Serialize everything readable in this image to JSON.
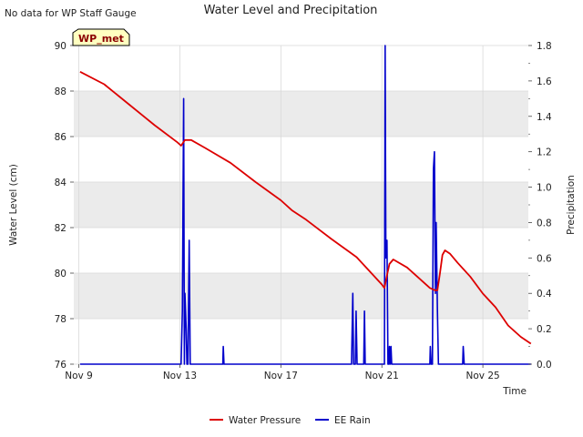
{
  "header": {
    "no_data_note": "No data for WP Staff Gauge"
  },
  "badge": {
    "label": "WP_met",
    "fill_color": "#ffffc0",
    "text_color": "#8b0000"
  },
  "colors": {
    "water_pressure": "#dd0000",
    "ee_rain": "#0000cc",
    "band": "#ebebeb",
    "grid": "#d8d8d8"
  },
  "chart_data": {
    "type": "line",
    "title": "Water Level and Precipitation",
    "xlabel": "Time",
    "ylabel_left": "Water Level (cm)",
    "ylabel_right": "Precipitation",
    "xlim": [
      8.8,
      26.8
    ],
    "ylim_left": [
      76,
      90
    ],
    "ylim_right": [
      0,
      1.8
    ],
    "x_ticks": [
      {
        "value": 9,
        "label": "Nov 9"
      },
      {
        "value": 13,
        "label": "Nov 13"
      },
      {
        "value": 17,
        "label": "Nov 17"
      },
      {
        "value": 21,
        "label": "Nov 21"
      },
      {
        "value": 25,
        "label": "Nov 25"
      }
    ],
    "y_ticks_left": [
      {
        "value": 76,
        "label": "76"
      },
      {
        "value": 78,
        "label": "78"
      },
      {
        "value": 80,
        "label": "80"
      },
      {
        "value": 82,
        "label": "82"
      },
      {
        "value": 84,
        "label": "84"
      },
      {
        "value": 86,
        "label": "86"
      },
      {
        "value": 88,
        "label": "88"
      },
      {
        "value": 90,
        "label": "90"
      }
    ],
    "y_ticks_right": [
      {
        "value": 0.0,
        "label": "0.0"
      },
      {
        "value": 0.2,
        "label": "0.2"
      },
      {
        "value": 0.4,
        "label": "0.4"
      },
      {
        "value": 0.6,
        "label": "0.6"
      },
      {
        "value": 0.8,
        "label": "0.8"
      },
      {
        "value": 1.0,
        "label": "1.0"
      },
      {
        "value": 1.2,
        "label": "1.2"
      },
      {
        "value": 1.4,
        "label": "1.4"
      },
      {
        "value": 1.6,
        "label": "1.6"
      },
      {
        "value": 1.8,
        "label": "1.8"
      }
    ],
    "legend": {
      "placement": "bottom-center",
      "entries": [
        "Water Pressure",
        "EE Rain"
      ]
    },
    "series": [
      {
        "name": "Water Pressure",
        "axis": "left",
        "points": [
          [
            9.05,
            88.85
          ],
          [
            10.0,
            88.3
          ],
          [
            11.0,
            87.4
          ],
          [
            12.0,
            86.5
          ],
          [
            12.9,
            85.75
          ],
          [
            13.05,
            85.6
          ],
          [
            13.2,
            85.85
          ],
          [
            13.45,
            85.85
          ],
          [
            14.0,
            85.5
          ],
          [
            15.0,
            84.85
          ],
          [
            16.0,
            84.0
          ],
          [
            17.0,
            83.2
          ],
          [
            17.45,
            82.75
          ],
          [
            18.0,
            82.35
          ],
          [
            19.0,
            81.5
          ],
          [
            20.0,
            80.7
          ],
          [
            21.0,
            79.5
          ],
          [
            21.1,
            79.35
          ],
          [
            21.2,
            79.9
          ],
          [
            21.3,
            80.4
          ],
          [
            21.45,
            80.6
          ],
          [
            22.0,
            80.25
          ],
          [
            22.5,
            79.75
          ],
          [
            22.9,
            79.35
          ],
          [
            23.1,
            79.25
          ],
          [
            23.2,
            79.25
          ],
          [
            23.3,
            80.0
          ],
          [
            23.4,
            80.8
          ],
          [
            23.5,
            81.0
          ],
          [
            23.7,
            80.85
          ],
          [
            24.0,
            80.45
          ],
          [
            24.5,
            79.85
          ],
          [
            25.0,
            79.1
          ],
          [
            25.5,
            78.5
          ],
          [
            26.0,
            77.7
          ],
          [
            26.5,
            77.2
          ],
          [
            26.9,
            76.9
          ]
        ]
      },
      {
        "name": "EE Rain",
        "axis": "right",
        "points": [
          [
            9.05,
            0
          ],
          [
            13.05,
            0
          ],
          [
            13.1,
            0.3
          ],
          [
            13.15,
            1.5
          ],
          [
            13.18,
            0
          ],
          [
            13.2,
            0.4
          ],
          [
            13.25,
            0.2
          ],
          [
            13.28,
            0
          ],
          [
            13.32,
            0
          ],
          [
            13.37,
            0.7
          ],
          [
            13.41,
            0
          ],
          [
            14.7,
            0
          ],
          [
            14.72,
            0.1
          ],
          [
            14.75,
            0
          ],
          [
            19.8,
            0
          ],
          [
            19.85,
            0.4
          ],
          [
            19.88,
            0
          ],
          [
            19.95,
            0
          ],
          [
            19.98,
            0.3
          ],
          [
            20.02,
            0
          ],
          [
            20.28,
            0
          ],
          [
            20.31,
            0.3
          ],
          [
            20.34,
            0
          ],
          [
            21.1,
            0
          ],
          [
            21.13,
            1.8
          ],
          [
            21.16,
            0.6
          ],
          [
            21.2,
            0.7
          ],
          [
            21.24,
            0
          ],
          [
            21.28,
            0
          ],
          [
            21.3,
            0.1
          ],
          [
            21.33,
            0
          ],
          [
            21.36,
            0.1
          ],
          [
            21.39,
            0
          ],
          [
            22.9,
            0
          ],
          [
            22.92,
            0.1
          ],
          [
            22.95,
            0
          ],
          [
            23.0,
            0
          ],
          [
            23.04,
            1.1
          ],
          [
            23.08,
            1.2
          ],
          [
            23.12,
            0.4
          ],
          [
            23.15,
            0.8
          ],
          [
            23.2,
            0.3
          ],
          [
            23.24,
            0
          ],
          [
            24.2,
            0
          ],
          [
            24.22,
            0.1
          ],
          [
            24.26,
            0
          ],
          [
            26.9,
            0
          ]
        ]
      }
    ]
  }
}
